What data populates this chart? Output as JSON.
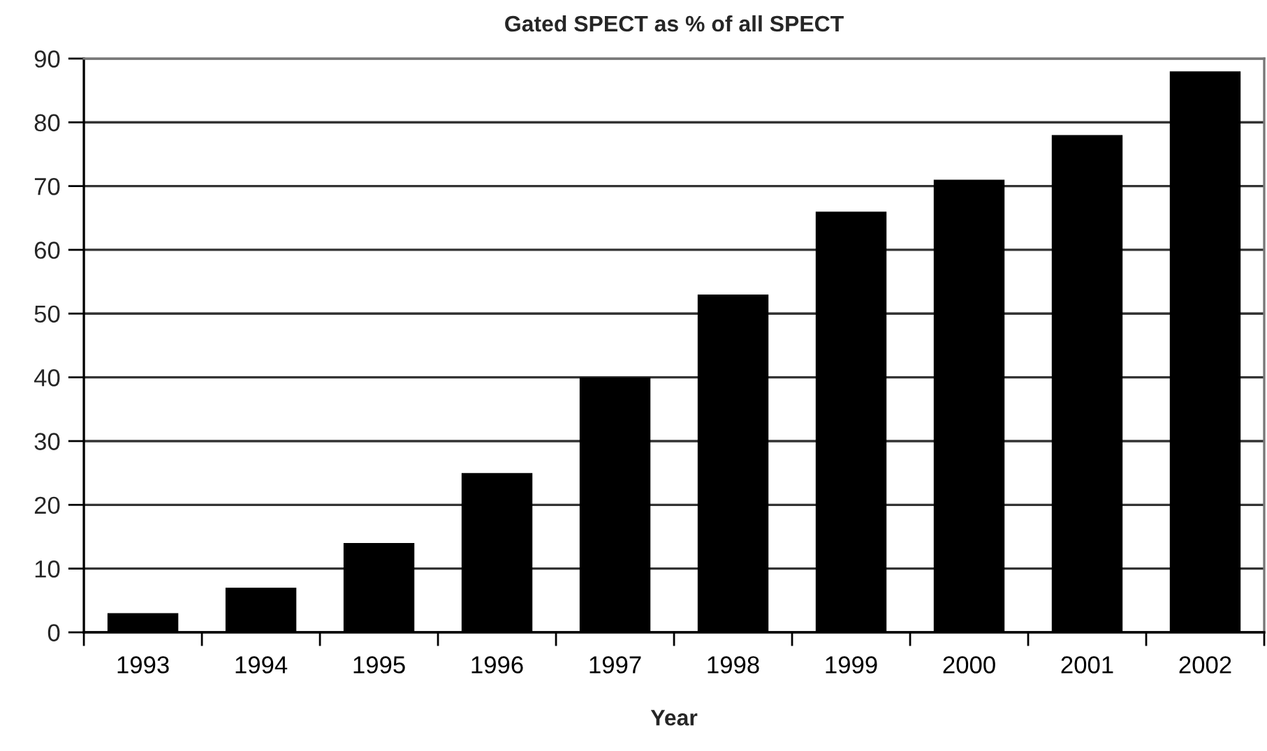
{
  "chart_data": {
    "type": "bar",
    "title": "Gated SPECT as % of all SPECT",
    "xlabel": "Year",
    "categories": [
      "1993",
      "1994",
      "1995",
      "1996",
      "1997",
      "1998",
      "1999",
      "2000",
      "2001",
      "2002"
    ],
    "values": [
      3,
      7,
      14,
      25,
      40,
      53,
      66,
      71,
      78,
      88
    ],
    "color": "#000000",
    "ylim": [
      0,
      90
    ],
    "yticks": [
      0,
      10,
      20,
      30,
      40,
      50,
      60,
      70,
      80,
      90
    ],
    "grid": "y"
  }
}
